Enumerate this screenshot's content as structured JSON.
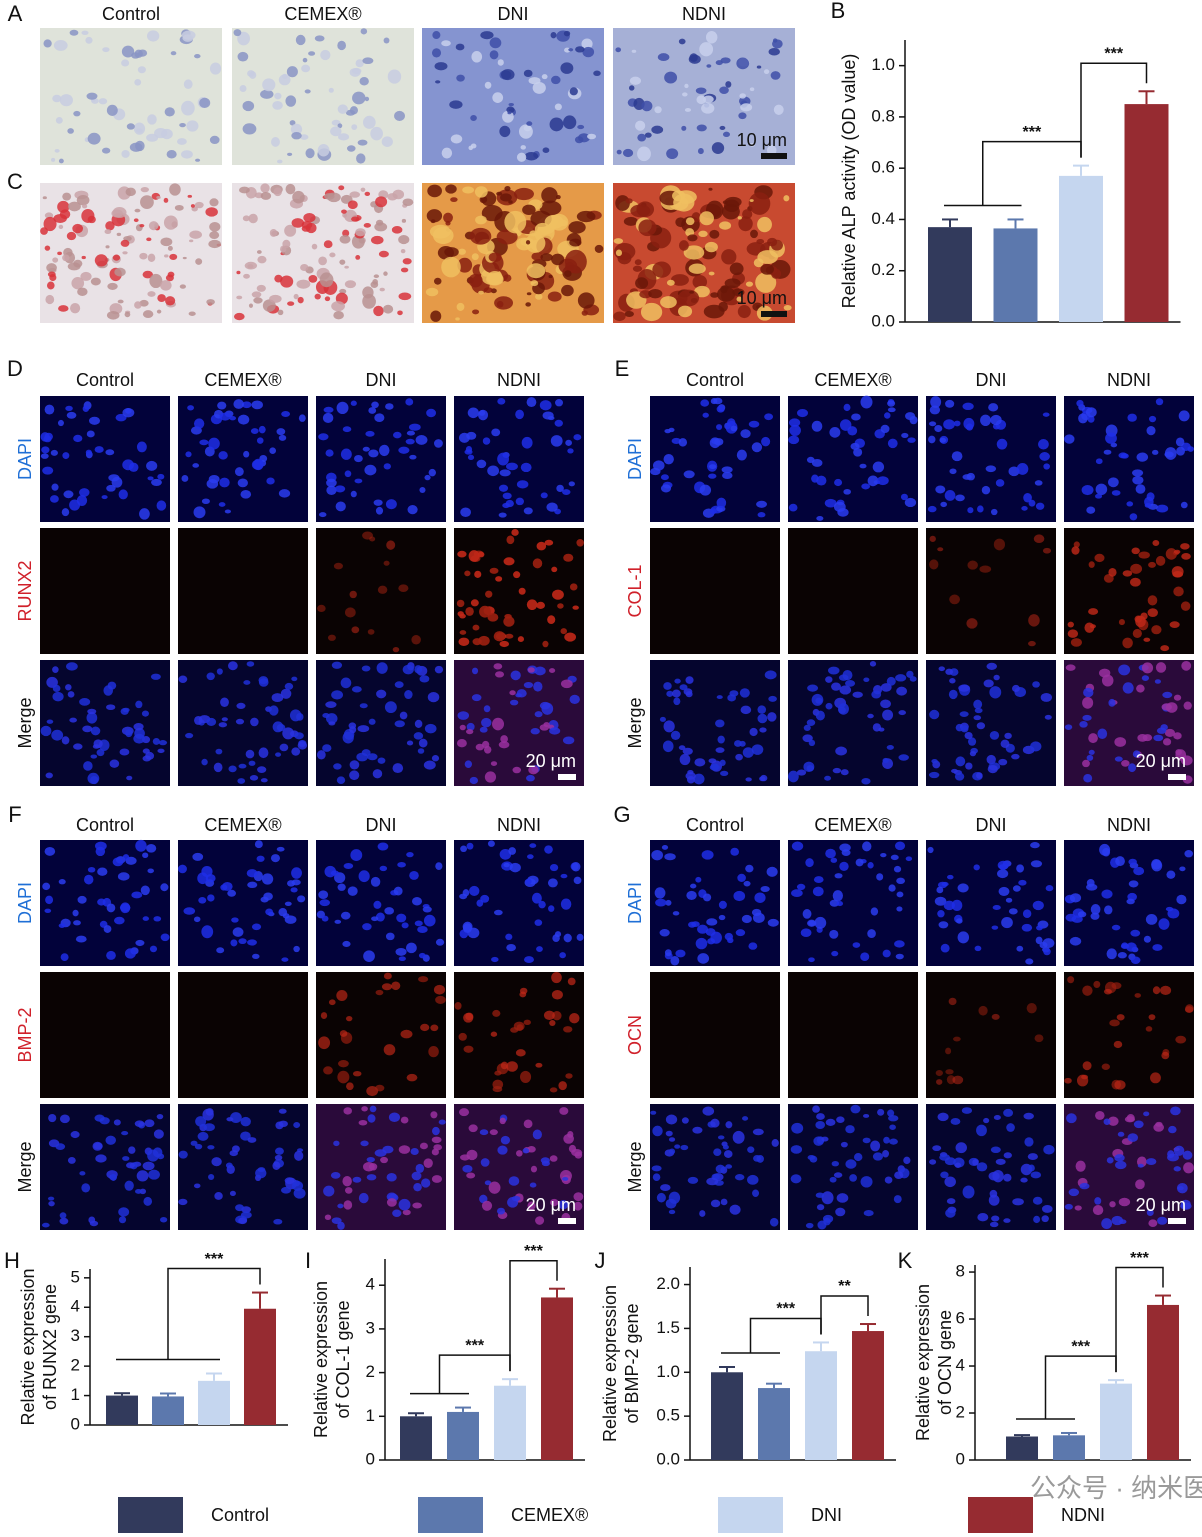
{
  "chart_data": [
    {
      "type": "bar",
      "panel": "B",
      "ylabel": [
        "Relative ALP activity (OD value)"
      ],
      "values": [
        0.37,
        0.365,
        0.57,
        0.85
      ],
      "errors": [
        0.03,
        0.035,
        0.04,
        0.05
      ],
      "ylim": [
        0,
        1.1
      ],
      "yticks": [
        {
          "value": 0,
          "label": "0.0"
        },
        {
          "value": 0.2,
          "label": "0.2"
        },
        {
          "value": 0.4,
          "label": "0.4"
        },
        {
          "value": 0.6,
          "label": "0.6"
        },
        {
          "value": 0.8,
          "label": "0.8"
        },
        {
          "value": 1,
          "label": "1.0"
        }
      ],
      "annotations": [
        {
          "text": "***",
          "left": [
            0,
            1
          ],
          "right": 2
        },
        {
          "text": "***",
          "left": [
            2
          ],
          "right": 3
        }
      ]
    },
    {
      "type": "bar",
      "panel": "H",
      "ylabel": [
        "Relative expression",
        "of RUNX2 gene"
      ],
      "values": [
        1.0,
        0.97,
        1.5,
        3.95
      ],
      "errors": [
        0.08,
        0.1,
        0.25,
        0.55
      ],
      "ylim": [
        0,
        5.3
      ],
      "yticks": [
        0,
        1,
        2,
        3,
        4,
        5
      ],
      "annotations": [
        {
          "text": "***",
          "left": [
            0,
            1,
            2
          ],
          "right": 3
        }
      ]
    },
    {
      "type": "bar",
      "panel": "I",
      "ylabel": [
        "Relative expression",
        "of COL-1 gene"
      ],
      "values": [
        1.0,
        1.1,
        1.7,
        3.72
      ],
      "errors": [
        0.07,
        0.1,
        0.15,
        0.2
      ],
      "ylim": [
        0,
        4.6
      ],
      "yticks": [
        0,
        1,
        2,
        3,
        4
      ],
      "annotations": [
        {
          "text": "***",
          "left": [
            0,
            1
          ],
          "right": 2
        },
        {
          "text": "***",
          "left": [
            2
          ],
          "right": 3
        }
      ]
    },
    {
      "type": "bar",
      "panel": "J",
      "ylabel": [
        "Relative expression",
        "of BMP-2 gene"
      ],
      "values": [
        1.0,
        0.82,
        1.24,
        1.47
      ],
      "errors": [
        0.06,
        0.05,
        0.1,
        0.08
      ],
      "ylim": [
        0,
        2.2
      ],
      "yticks": [
        {
          "value": 0,
          "label": "0.0"
        },
        {
          "value": 0.5,
          "label": "0.5"
        },
        {
          "value": 1,
          "label": "1.0"
        },
        {
          "value": 1.5,
          "label": "1.5"
        },
        {
          "value": 2,
          "label": "2.0"
        }
      ],
      "annotations": [
        {
          "text": "***",
          "left": [
            0,
            1
          ],
          "right": 2
        },
        {
          "text": "**",
          "left": [
            2
          ],
          "right": 3
        }
      ]
    },
    {
      "type": "bar",
      "panel": "K",
      "ylabel": [
        "Relative expression",
        "of OCN gene"
      ],
      "values": [
        1.0,
        1.05,
        3.25,
        6.6
      ],
      "errors": [
        0.06,
        0.1,
        0.15,
        0.4
      ],
      "ylim": [
        0,
        8.3
      ],
      "yticks": [
        0,
        2,
        4,
        6,
        8
      ],
      "annotations": [
        {
          "text": "***",
          "left": [
            0,
            1
          ],
          "right": 2
        },
        {
          "text": "***",
          "left": [
            2
          ],
          "right": 3
        }
      ]
    }
  ],
  "legend": {
    "items": [
      {
        "name": "Control",
        "color": "#323a5c"
      },
      {
        "name": "CEMEX®",
        "color": "#5c78ad"
      },
      {
        "name": "DNI",
        "color": "#c5d6ef"
      },
      {
        "name": "NDNI",
        "color": "#962b31"
      }
    ]
  },
  "micrographs": [
    {
      "panel": "A",
      "columns": [
        "Control",
        "CEMEX®",
        "DNI",
        "NDNI"
      ],
      "scale_bar": "10 μm"
    },
    {
      "panel": "C",
      "scale_bar": "10 μm"
    },
    {
      "panel": "D",
      "columns": [
        "Control",
        "CEMEX®",
        "DNI",
        "NDNI"
      ],
      "rows": [
        "DAPI",
        "RUNX2",
        "Merge"
      ],
      "scale_bar": "20 μm"
    },
    {
      "panel": "E",
      "columns": [
        "Control",
        "CEMEX®",
        "DNI",
        "NDNI"
      ],
      "rows": [
        "DAPI",
        "COL-1",
        "Merge"
      ],
      "scale_bar": "20 μm"
    },
    {
      "panel": "F",
      "columns": [
        "Control",
        "CEMEX®",
        "DNI",
        "NDNI"
      ],
      "rows": [
        "DAPI",
        "BMP-2",
        "Merge"
      ],
      "scale_bar": "20 μm"
    },
    {
      "panel": "G",
      "columns": [
        "Control",
        "CEMEX®",
        "DNI",
        "NDNI"
      ],
      "rows": [
        "DAPI",
        "OCN",
        "Merge"
      ],
      "scale_bar": "20 μm"
    }
  ],
  "watermark": "公众号 · 纳米医韵"
}
